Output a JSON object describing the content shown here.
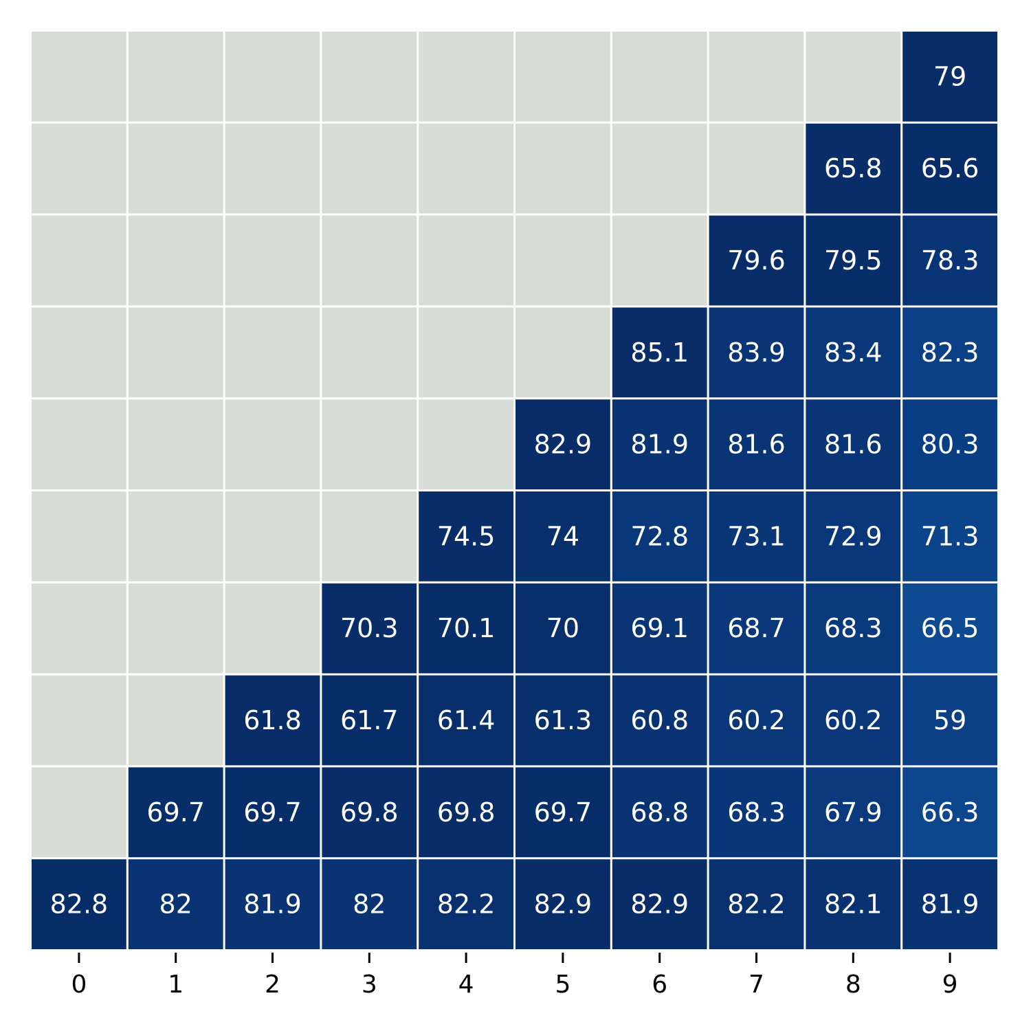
{
  "chart_data": {
    "type": "heatmap",
    "title": "",
    "xlabel": "",
    "ylabel": "",
    "x_categories": [
      "0",
      "1",
      "2",
      "3",
      "4",
      "5",
      "6",
      "7",
      "8",
      "9"
    ],
    "y_categories": [],
    "rows": [
      [
        null,
        null,
        null,
        null,
        null,
        null,
        null,
        null,
        null,
        79
      ],
      [
        null,
        null,
        null,
        null,
        null,
        null,
        null,
        null,
        65.8,
        65.6
      ],
      [
        null,
        null,
        null,
        null,
        null,
        null,
        null,
        79.6,
        79.5,
        78.3
      ],
      [
        null,
        null,
        null,
        null,
        null,
        null,
        85.1,
        83.9,
        83.4,
        82.3
      ],
      [
        null,
        null,
        null,
        null,
        null,
        82.9,
        81.9,
        81.6,
        81.6,
        80.3
      ],
      [
        null,
        null,
        null,
        null,
        74.5,
        74,
        72.8,
        73.1,
        72.9,
        71.3
      ],
      [
        null,
        null,
        null,
        70.3,
        70.1,
        70,
        69.1,
        68.7,
        68.3,
        66.5
      ],
      [
        null,
        null,
        61.8,
        61.7,
        61.4,
        61.3,
        60.8,
        60.2,
        60.2,
        59
      ],
      [
        null,
        69.7,
        69.7,
        69.8,
        69.8,
        69.7,
        68.8,
        68.3,
        67.9,
        66.3
      ],
      [
        82.8,
        82,
        81.9,
        82,
        82.2,
        82.9,
        82.9,
        82.2,
        82.1,
        81.9
      ]
    ],
    "colormap": "Blues",
    "color_scale": "per-row",
    "missing_color": "#d8dcd6",
    "grid_color": "#ffffff",
    "annotation_color": "#ffffff",
    "colorbar": false
  }
}
